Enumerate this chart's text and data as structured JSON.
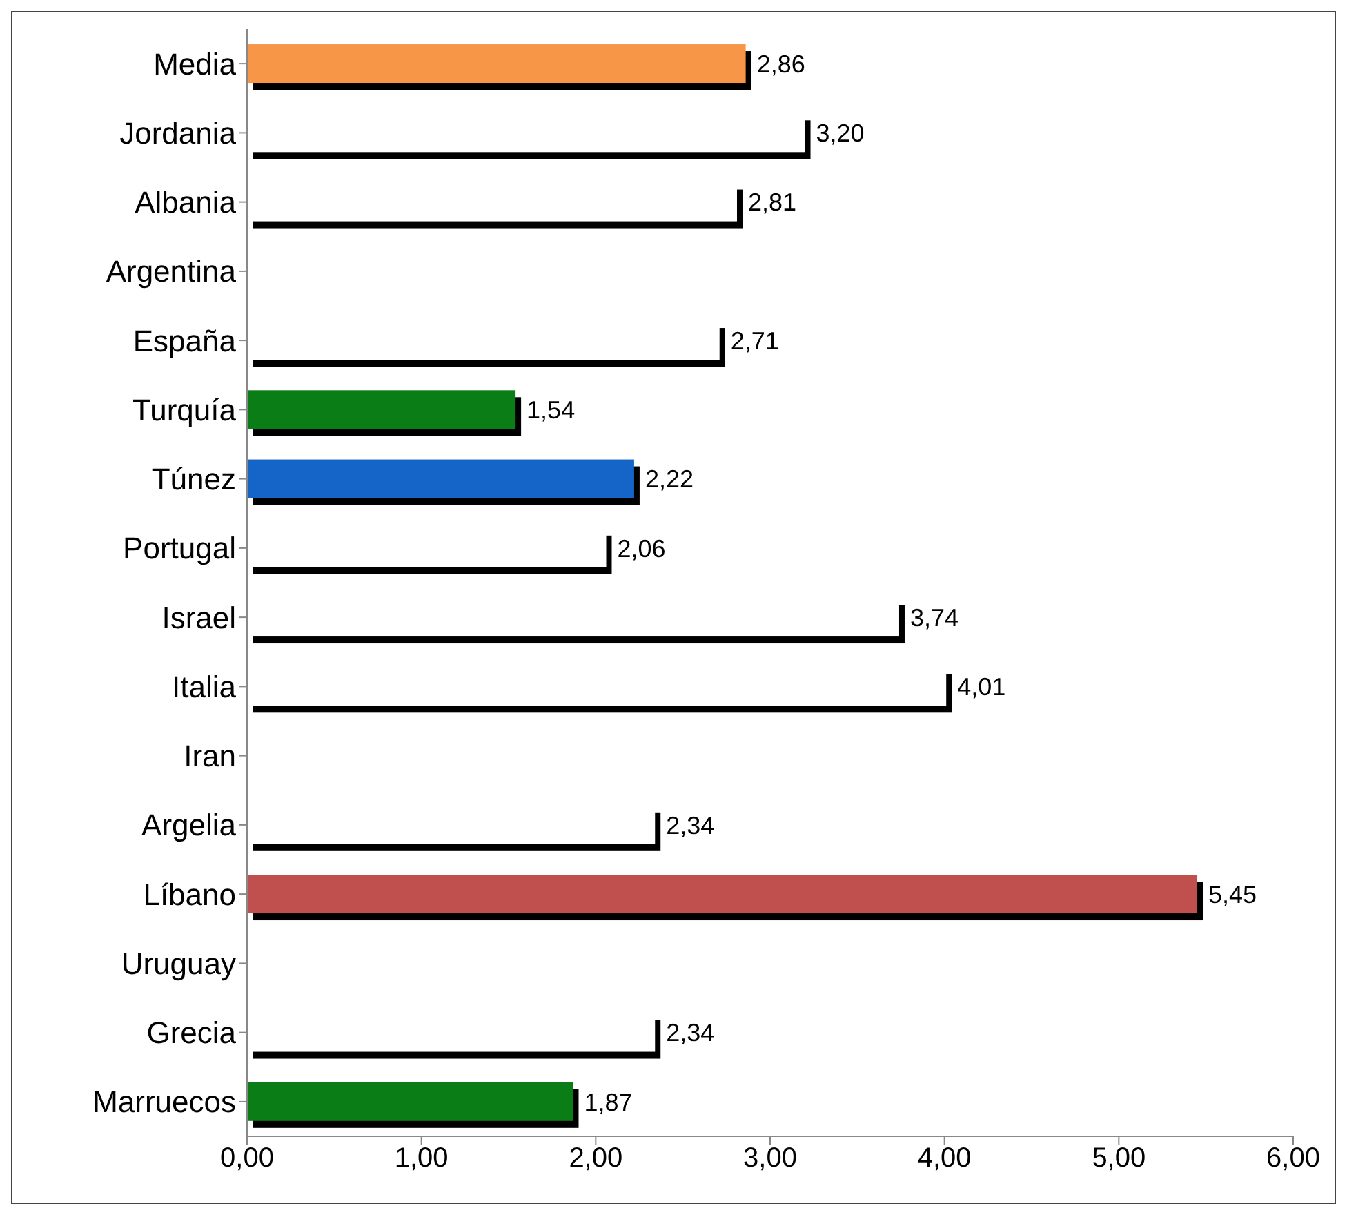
{
  "chart_data": {
    "type": "bar",
    "orientation": "horizontal",
    "categories": [
      "Media",
      "Jordania",
      "Albania",
      "Argentina",
      "España",
      "Turquía",
      "Túnez",
      "Portugal",
      "Israel",
      "Italia",
      "Iran",
      "Argelia",
      "Líbano",
      "Uruguay",
      "Grecia",
      "Marruecos"
    ],
    "values": [
      2.86,
      3.2,
      2.81,
      null,
      2.71,
      1.54,
      2.22,
      2.06,
      3.74,
      4.01,
      null,
      2.34,
      5.45,
      null,
      2.34,
      1.87
    ],
    "value_labels": [
      "2,86",
      "3,20",
      "2,81",
      null,
      "2,71",
      "1,54",
      "2,22",
      "2,06",
      "3,74",
      "4,01",
      null,
      "2,34",
      "5,45",
      null,
      "2,34",
      "1,87"
    ],
    "colors": [
      "#f79646",
      "#ffffff",
      "#ffffff",
      "#ffffff",
      "#ffffff",
      "#0a7d16",
      "#1565c8",
      "#ffffff",
      "#ffffff",
      "#ffffff",
      "#ffffff",
      "#ffffff",
      "#c0504d",
      "#ffffff",
      "#ffffff",
      "#0a7d16"
    ],
    "xlim": [
      0,
      6
    ],
    "xticks": [
      {
        "value": 0,
        "label": "0,00"
      },
      {
        "value": 1,
        "label": "1,00"
      },
      {
        "value": 2,
        "label": "2,00"
      },
      {
        "value": 3,
        "label": "3,00"
      },
      {
        "value": 4,
        "label": "4,00"
      },
      {
        "value": 5,
        "label": "5,00"
      },
      {
        "value": 6,
        "label": "6,00"
      }
    ],
    "grid": false
  }
}
